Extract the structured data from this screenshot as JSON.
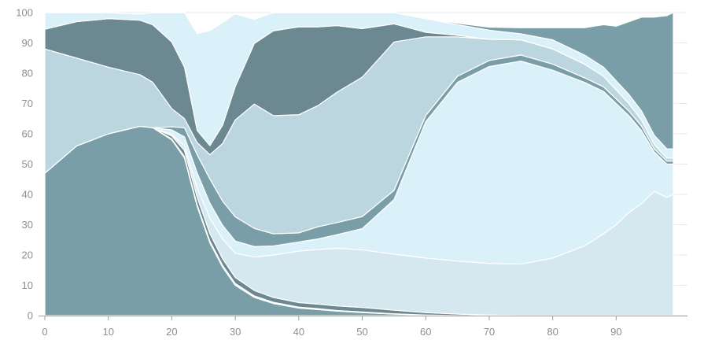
{
  "chart_data": {
    "type": "area",
    "stacked": true,
    "title": "",
    "xlabel": "",
    "ylabel": "",
    "xlim": [
      0,
      99
    ],
    "ylim": [
      0,
      100
    ],
    "x_ticks": [
      0,
      10,
      20,
      30,
      40,
      50,
      60,
      70,
      80,
      90
    ],
    "y_ticks": [
      0,
      10,
      20,
      30,
      40,
      50,
      60,
      70,
      80,
      90,
      100
    ],
    "grid": "horizontal",
    "legend": "none",
    "x": [
      0,
      5,
      10,
      15,
      17,
      20,
      22,
      24,
      26,
      28,
      30,
      33,
      36,
      40,
      43,
      46,
      50,
      55,
      60,
      65,
      70,
      75,
      80,
      85,
      88,
      90,
      92,
      94,
      96,
      98,
      99
    ],
    "series": [
      {
        "color": "#7a9ea8",
        "values": [
          47,
          56,
          60,
          62.5,
          62,
          58,
          52,
          36,
          24,
          16,
          10,
          6,
          4,
          2.5,
          2,
          1.5,
          1,
          0.5,
          0.2,
          0,
          0,
          0,
          0,
          0,
          0,
          0,
          0,
          0,
          0,
          0,
          0
        ]
      },
      {
        "color": "#f2f8fb",
        "values": [
          0,
          0,
          0,
          0,
          0,
          0.3,
          0.5,
          0.6,
          0.6,
          0.6,
          0.6,
          0.5,
          0.4,
          0.3,
          0.3,
          0.2,
          0.2,
          0.1,
          0,
          0,
          0,
          0,
          0,
          0,
          0,
          0,
          0,
          0,
          0,
          0,
          0
        ]
      },
      {
        "color": "#6c8891",
        "values": [
          0,
          0,
          0,
          0,
          0,
          1,
          2,
          2.5,
          2.5,
          2.2,
          2,
          1.8,
          1.6,
          1.5,
          1.5,
          1.5,
          1.5,
          1.2,
          0.8,
          0.5,
          0.2,
          0,
          0,
          0,
          0,
          0,
          0,
          0,
          0,
          0,
          0
        ]
      },
      {
        "color": "#d5e8f0",
        "values": [
          0,
          0,
          0,
          0,
          0,
          0.5,
          1.5,
          3,
          5,
          6.5,
          8,
          11,
          14,
          17,
          18,
          19,
          19,
          18.5,
          18,
          17.5,
          17,
          17,
          19,
          23,
          27,
          30,
          34,
          37,
          41,
          39,
          40
        ]
      },
      {
        "color": "#daf1fa",
        "values": [
          0,
          0,
          0,
          0,
          0,
          1.5,
          3,
          5,
          5,
          4.5,
          4,
          3.5,
          3,
          3,
          3.5,
          4.5,
          7,
          18,
          45,
          59,
          65,
          67,
          62,
          54,
          47,
          40,
          32,
          24,
          13,
          11,
          10
        ]
      },
      {
        "color": "#7a9ea8",
        "values": [
          0,
          0,
          0,
          0,
          0,
          1,
          3,
          6,
          8,
          8,
          8,
          6,
          4,
          3,
          4,
          4,
          4,
          3,
          2,
          2,
          2,
          2,
          2,
          1.5,
          1.5,
          1.5,
          1.5,
          1.5,
          1,
          1,
          1
        ]
      },
      {
        "color": "#bcd6df",
        "values": [
          41,
          29,
          22,
          17,
          15,
          6,
          3,
          4,
          8,
          19,
          32,
          41,
          39,
          39,
          40,
          43,
          46,
          49,
          26,
          13,
          7,
          5,
          5,
          4.5,
          3.5,
          3,
          2.5,
          2,
          1.5,
          1,
          1
        ]
      },
      {
        "color": "#6c8891",
        "values": [
          6.5,
          12,
          16,
          18,
          19,
          22,
          17,
          4,
          3,
          6,
          11,
          20,
          28,
          29,
          26,
          22,
          16,
          6,
          1.5,
          0.5,
          0,
          0,
          0,
          0,
          0,
          0,
          0,
          0,
          0,
          0,
          0
        ]
      },
      {
        "color": "#daf1fa",
        "values": [
          5.5,
          3,
          2,
          2,
          4,
          10,
          18,
          32,
          38,
          34,
          24,
          8,
          6,
          6,
          6,
          6,
          5.5,
          5,
          4.5,
          3.5,
          3,
          2,
          3,
          3,
          3,
          3,
          3,
          3,
          3,
          3,
          3
        ]
      },
      {
        "color": "#7a9ea8",
        "values": [
          0,
          0,
          0,
          0,
          0,
          0,
          0,
          0,
          0,
          0,
          0,
          0,
          0,
          0,
          0,
          0,
          0,
          0,
          0,
          0.5,
          1,
          2,
          4,
          9,
          14,
          18,
          24,
          31,
          39,
          44,
          45
        ]
      }
    ]
  }
}
